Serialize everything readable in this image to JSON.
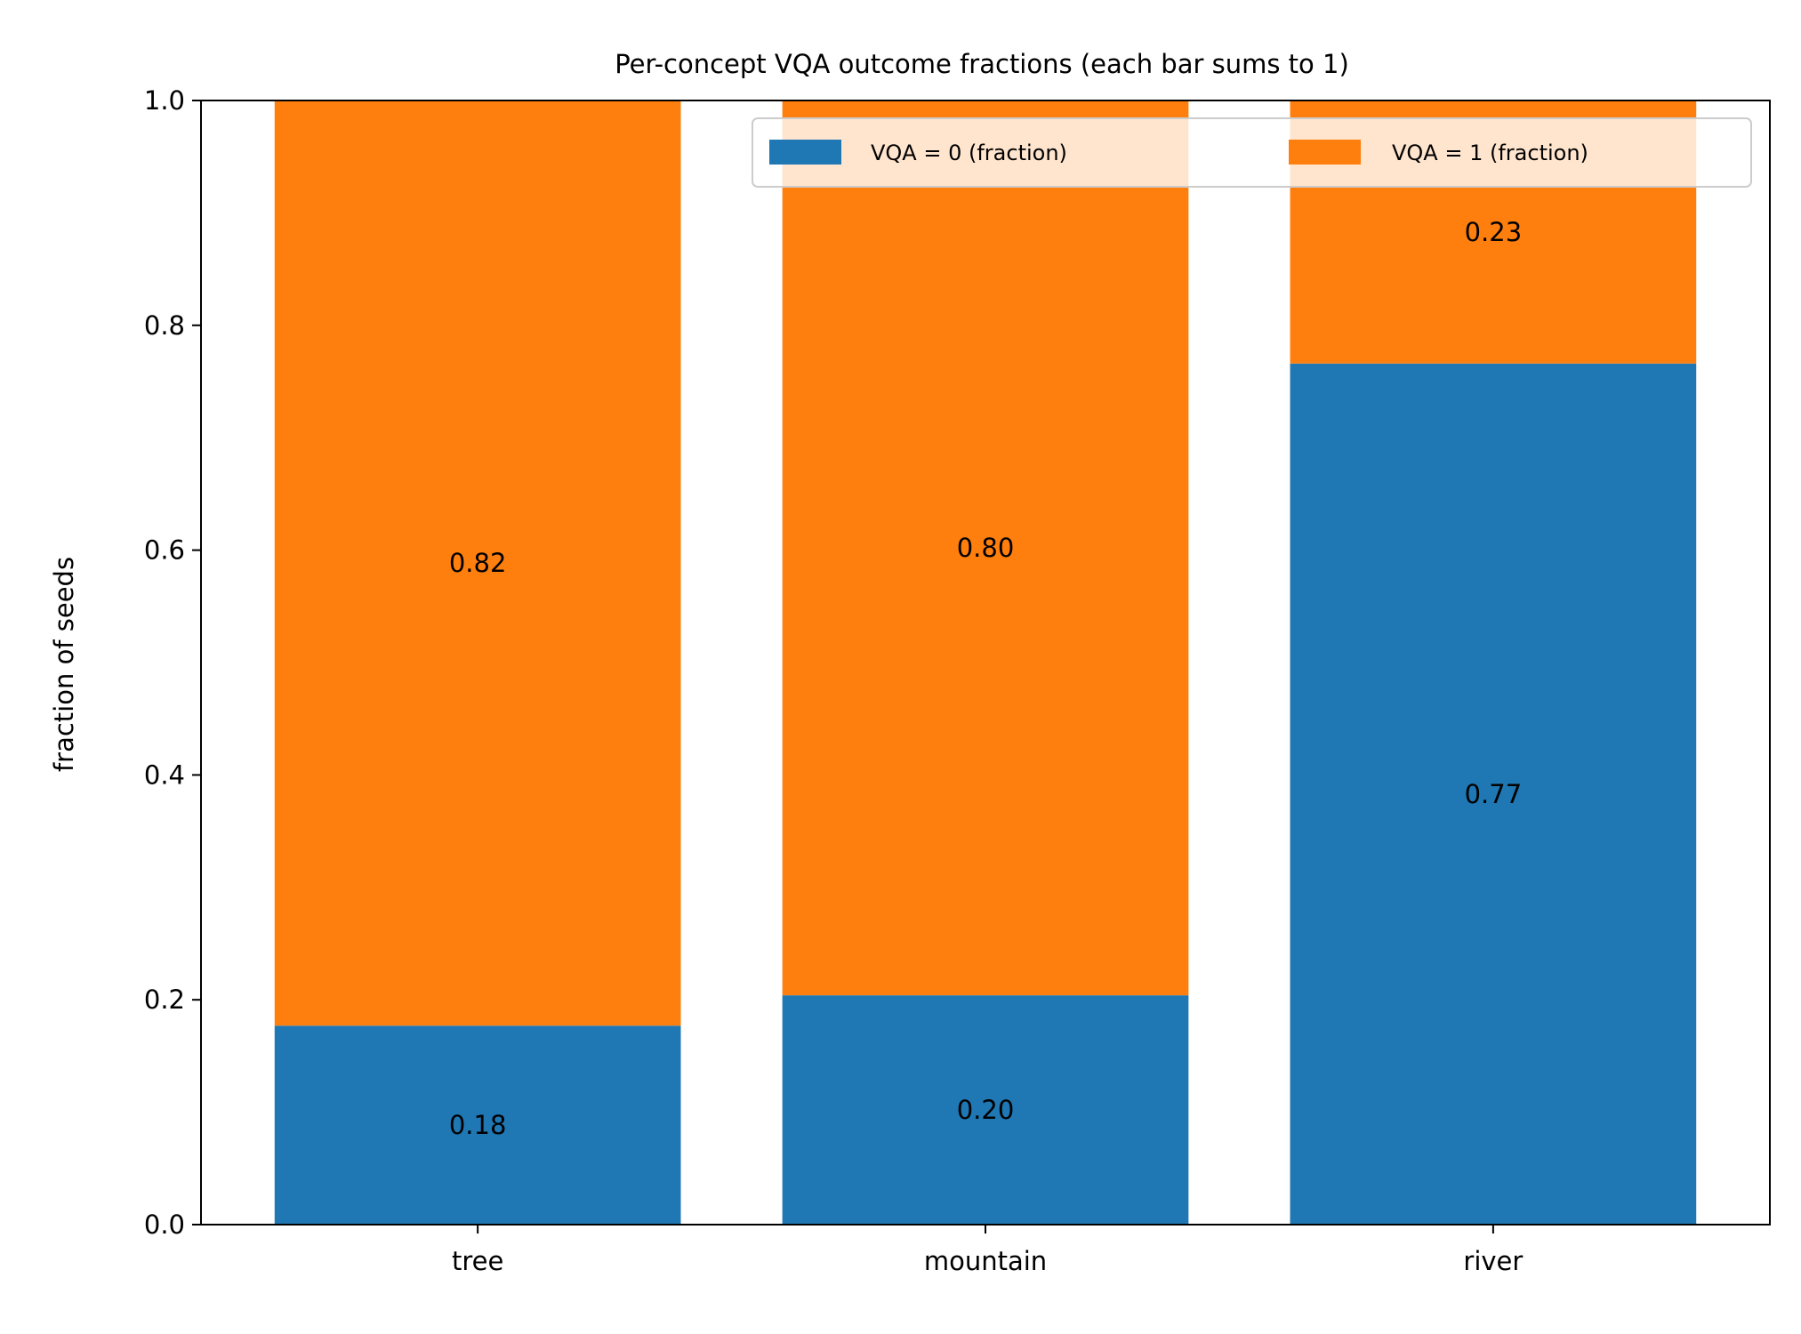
{
  "chart_data": {
    "type": "bar",
    "stacked": true,
    "title": "Per-concept VQA outcome fractions (each bar sums to 1)",
    "xlabel": "",
    "ylabel": "fraction of seeds",
    "ylim": [
      0,
      1.0
    ],
    "yticks": [
      "0.0",
      "0.2",
      "0.4",
      "0.6",
      "0.8",
      "1.0"
    ],
    "categories": [
      "tree",
      "mountain",
      "river"
    ],
    "series": [
      {
        "name": "VQA = 0 (fraction)",
        "color": "#1f77b4",
        "values": [
          0.177,
          0.204,
          0.766
        ],
        "labels": [
          "0.18",
          "0.20",
          "0.77"
        ]
      },
      {
        "name": "VQA = 1 (fraction)",
        "color": "#ff7f0e",
        "values": [
          0.823,
          0.796,
          0.234
        ],
        "labels": [
          "0.82",
          "0.80",
          "0.23"
        ]
      }
    ],
    "legend_position": "top-right",
    "grid": false
  }
}
